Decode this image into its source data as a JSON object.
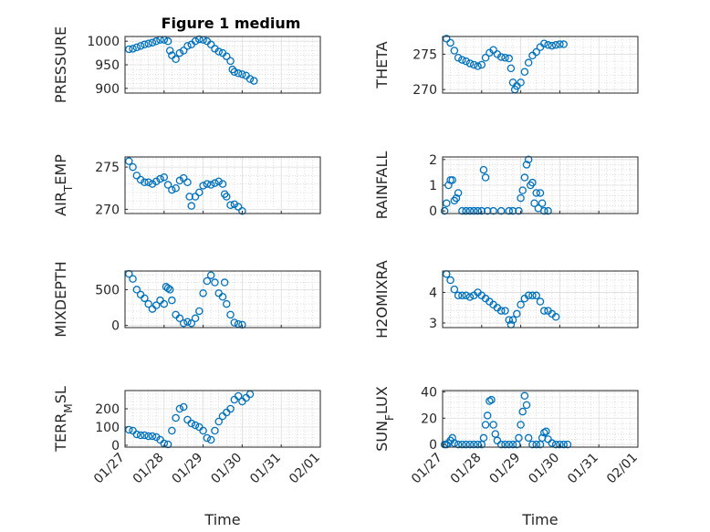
{
  "figure_title": "Figure 1 medium",
  "marker_color": "#0072bd",
  "chart_data": [
    {
      "type": "scatter",
      "ylabel": "PRESSURE",
      "ylim": [
        890,
        1010
      ],
      "yticks": [
        900,
        950,
        1000
      ],
      "xlim": [
        0,
        5
      ],
      "xticks": [
        "01/27",
        "01/28",
        "01/29",
        "01/30",
        "01/31",
        "02/01"
      ],
      "show_xticklabels": false,
      "xlabel": "",
      "grid": true,
      "points": [
        [
          0.1,
          983
        ],
        [
          0.2,
          984
        ],
        [
          0.3,
          987
        ],
        [
          0.4,
          990
        ],
        [
          0.5,
          993
        ],
        [
          0.6,
          995
        ],
        [
          0.7,
          997
        ],
        [
          0.8,
          1000
        ],
        [
          0.9,
          1003
        ],
        [
          1.0,
          1003
        ],
        [
          1.1,
          1000
        ],
        [
          1.15,
          980
        ],
        [
          1.2,
          970
        ],
        [
          1.3,
          962
        ],
        [
          1.4,
          975
        ],
        [
          1.5,
          980
        ],
        [
          1.6,
          990
        ],
        [
          1.7,
          993
        ],
        [
          1.8,
          1000
        ],
        [
          1.9,
          1004
        ],
        [
          2.0,
          1003
        ],
        [
          2.1,
          1000
        ],
        [
          2.2,
          993
        ],
        [
          2.3,
          984
        ],
        [
          2.4,
          978
        ],
        [
          2.5,
          975
        ],
        [
          2.6,
          968
        ],
        [
          2.7,
          958
        ],
        [
          2.75,
          940
        ],
        [
          2.8,
          935
        ],
        [
          2.9,
          932
        ],
        [
          3.0,
          930
        ],
        [
          3.1,
          927
        ],
        [
          3.2,
          920
        ],
        [
          3.3,
          916
        ]
      ]
    },
    {
      "type": "scatter",
      "ylabel": "THETA",
      "ylim": [
        269.5,
        277.5
      ],
      "yticks": [
        270,
        275
      ],
      "xlim": [
        0,
        5
      ],
      "xticks": [
        "01/27",
        "01/28",
        "01/29",
        "01/30",
        "01/31",
        "02/01"
      ],
      "show_xticklabels": false,
      "xlabel": "",
      "grid": true,
      "points": [
        [
          0.1,
          277.2
        ],
        [
          0.2,
          276.6
        ],
        [
          0.3,
          275.5
        ],
        [
          0.4,
          274.5
        ],
        [
          0.5,
          274.2
        ],
        [
          0.6,
          274
        ],
        [
          0.7,
          273.7
        ],
        [
          0.8,
          273.5
        ],
        [
          0.9,
          273.3
        ],
        [
          1.0,
          273.5
        ],
        [
          1.1,
          274.5
        ],
        [
          1.2,
          275.2
        ],
        [
          1.3,
          275.6
        ],
        [
          1.4,
          275
        ],
        [
          1.5,
          274.6
        ],
        [
          1.6,
          274.5
        ],
        [
          1.7,
          274.4
        ],
        [
          1.75,
          273
        ],
        [
          1.8,
          271
        ],
        [
          1.85,
          270
        ],
        [
          1.9,
          270.5
        ],
        [
          2.0,
          271
        ],
        [
          2.1,
          272.5
        ],
        [
          2.2,
          273.8
        ],
        [
          2.3,
          274.8
        ],
        [
          2.4,
          275.3
        ],
        [
          2.5,
          276
        ],
        [
          2.6,
          276.5
        ],
        [
          2.7,
          276.3
        ],
        [
          2.8,
          276.2
        ],
        [
          2.9,
          276.3
        ],
        [
          3.0,
          276.4
        ],
        [
          3.1,
          276.4
        ]
      ]
    },
    {
      "type": "scatter",
      "ylabel": "AIR_TEMP",
      "ylim": [
        269.5,
        276.2
      ],
      "yticks": [
        270,
        275
      ],
      "xlim": [
        0,
        5
      ],
      "xticks": [
        "01/27",
        "01/28",
        "01/29",
        "01/30",
        "01/31",
        "02/01"
      ],
      "show_xticklabels": false,
      "xlabel": "",
      "grid": true,
      "points": [
        [
          0.1,
          275.7
        ],
        [
          0.2,
          275
        ],
        [
          0.3,
          274
        ],
        [
          0.4,
          273.5
        ],
        [
          0.5,
          273.2
        ],
        [
          0.6,
          273.2
        ],
        [
          0.7,
          273
        ],
        [
          0.8,
          273.3
        ],
        [
          0.9,
          273.6
        ],
        [
          1.0,
          273.8
        ],
        [
          1.1,
          272.9
        ],
        [
          1.2,
          272.3
        ],
        [
          1.3,
          272.5
        ],
        [
          1.4,
          273.4
        ],
        [
          1.5,
          273.7
        ],
        [
          1.6,
          273.2
        ],
        [
          1.65,
          271.5
        ],
        [
          1.7,
          270.4
        ],
        [
          1.8,
          271.5
        ],
        [
          1.9,
          272
        ],
        [
          2.0,
          272.8
        ],
        [
          2.1,
          273
        ],
        [
          2.2,
          272.9
        ],
        [
          2.3,
          273.1
        ],
        [
          2.4,
          273.3
        ],
        [
          2.5,
          273
        ],
        [
          2.55,
          271.8
        ],
        [
          2.6,
          271.5
        ],
        [
          2.7,
          270.5
        ],
        [
          2.8,
          270.6
        ],
        [
          2.9,
          270.3
        ],
        [
          3.0,
          269.8
        ]
      ]
    },
    {
      "type": "scatter",
      "ylabel": "RAINFALL",
      "ylim": [
        -0.1,
        2.1
      ],
      "yticks": [
        0,
        1,
        2
      ],
      "xlim": [
        0,
        5
      ],
      "xticks": [
        "01/27",
        "01/28",
        "01/29",
        "01/30",
        "01/31",
        "02/01"
      ],
      "show_xticklabels": false,
      "xlabel": "",
      "grid": true,
      "points": [
        [
          0.05,
          0
        ],
        [
          0.1,
          0.3
        ],
        [
          0.15,
          1
        ],
        [
          0.2,
          1.2
        ],
        [
          0.25,
          1.2
        ],
        [
          0.3,
          0.4
        ],
        [
          0.35,
          0.5
        ],
        [
          0.4,
          0.7
        ],
        [
          0.5,
          0
        ],
        [
          0.6,
          0
        ],
        [
          0.7,
          0
        ],
        [
          0.8,
          0
        ],
        [
          0.9,
          0
        ],
        [
          1.0,
          0
        ],
        [
          1.05,
          1.6
        ],
        [
          1.1,
          1.3
        ],
        [
          1.15,
          0
        ],
        [
          1.3,
          0
        ],
        [
          1.5,
          0
        ],
        [
          1.7,
          0
        ],
        [
          1.8,
          0
        ],
        [
          1.95,
          0
        ],
        [
          2.0,
          0.5
        ],
        [
          2.05,
          0.8
        ],
        [
          2.1,
          1.3
        ],
        [
          2.15,
          1.8
        ],
        [
          2.2,
          2
        ],
        [
          2.25,
          1
        ],
        [
          2.3,
          1.1
        ],
        [
          2.35,
          0.3
        ],
        [
          2.4,
          0.7
        ],
        [
          2.45,
          0.1
        ],
        [
          2.5,
          0.7
        ],
        [
          2.55,
          0.3
        ],
        [
          2.6,
          0
        ],
        [
          2.7,
          0
        ]
      ]
    },
    {
      "type": "scatter",
      "ylabel": "MIXDEPTH",
      "ylim": [
        -30,
        760
      ],
      "yticks": [
        0,
        500
      ],
      "xlim": [
        0,
        5
      ],
      "xticks": [
        "01/27",
        "01/28",
        "01/29",
        "01/30",
        "01/31",
        "02/01"
      ],
      "show_xticklabels": false,
      "xlabel": "",
      "grid": true,
      "points": [
        [
          0.1,
          720
        ],
        [
          0.2,
          650
        ],
        [
          0.3,
          500
        ],
        [
          0.4,
          430
        ],
        [
          0.5,
          380
        ],
        [
          0.6,
          300
        ],
        [
          0.7,
          230
        ],
        [
          0.8,
          280
        ],
        [
          0.9,
          350
        ],
        [
          1.0,
          300
        ],
        [
          1.05,
          540
        ],
        [
          1.1,
          520
        ],
        [
          1.15,
          500
        ],
        [
          1.2,
          350
        ],
        [
          1.3,
          150
        ],
        [
          1.4,
          100
        ],
        [
          1.5,
          30
        ],
        [
          1.6,
          50
        ],
        [
          1.7,
          30
        ],
        [
          1.8,
          100
        ],
        [
          1.9,
          200
        ],
        [
          2.0,
          450
        ],
        [
          2.1,
          620
        ],
        [
          2.2,
          700
        ],
        [
          2.3,
          600
        ],
        [
          2.4,
          450
        ],
        [
          2.5,
          400
        ],
        [
          2.55,
          600
        ],
        [
          2.6,
          300
        ],
        [
          2.7,
          150
        ],
        [
          2.8,
          40
        ],
        [
          2.9,
          20
        ],
        [
          3.0,
          10
        ]
      ]
    },
    {
      "type": "scatter",
      "ylabel": "H2OMIXRA",
      "ylim": [
        2.85,
        4.7
      ],
      "yticks": [
        3,
        4
      ],
      "xlim": [
        0,
        5
      ],
      "xticks": [
        "01/27",
        "01/28",
        "01/29",
        "01/30",
        "01/31",
        "02/01"
      ],
      "show_xticklabels": false,
      "xlabel": "",
      "grid": true,
      "points": [
        [
          0.1,
          4.6
        ],
        [
          0.2,
          4.4
        ],
        [
          0.3,
          4.1
        ],
        [
          0.4,
          3.9
        ],
        [
          0.5,
          3.9
        ],
        [
          0.6,
          3.9
        ],
        [
          0.7,
          3.85
        ],
        [
          0.8,
          3.9
        ],
        [
          0.9,
          4
        ],
        [
          1.0,
          3.9
        ],
        [
          1.1,
          3.8
        ],
        [
          1.2,
          3.7
        ],
        [
          1.3,
          3.6
        ],
        [
          1.4,
          3.5
        ],
        [
          1.5,
          3.4
        ],
        [
          1.6,
          3.4
        ],
        [
          1.7,
          3.1
        ],
        [
          1.75,
          2.95
        ],
        [
          1.8,
          3.1
        ],
        [
          1.9,
          3.3
        ],
        [
          2.0,
          3.6
        ],
        [
          2.1,
          3.8
        ],
        [
          2.2,
          3.9
        ],
        [
          2.3,
          3.9
        ],
        [
          2.4,
          3.9
        ],
        [
          2.5,
          3.7
        ],
        [
          2.6,
          3.4
        ],
        [
          2.7,
          3.4
        ],
        [
          2.8,
          3.3
        ],
        [
          2.9,
          3.2
        ]
      ]
    },
    {
      "type": "scatter",
      "ylabel": "TERR_MSL",
      "ylim": [
        -10,
        300
      ],
      "yticks": [
        0,
        100,
        200
      ],
      "xlim": [
        0,
        5
      ],
      "xticks": [
        "01/27",
        "01/28",
        "01/29",
        "01/30",
        "01/31",
        "02/01"
      ],
      "show_xticklabels": true,
      "xlabel": "Time",
      "grid": true,
      "points": [
        [
          0.1,
          85
        ],
        [
          0.2,
          80
        ],
        [
          0.3,
          60
        ],
        [
          0.4,
          55
        ],
        [
          0.5,
          55
        ],
        [
          0.6,
          50
        ],
        [
          0.7,
          50
        ],
        [
          0.8,
          45
        ],
        [
          0.9,
          30
        ],
        [
          1.0,
          10
        ],
        [
          1.1,
          5
        ],
        [
          1.2,
          80
        ],
        [
          1.3,
          150
        ],
        [
          1.4,
          200
        ],
        [
          1.5,
          210
        ],
        [
          1.6,
          140
        ],
        [
          1.7,
          120
        ],
        [
          1.8,
          110
        ],
        [
          1.9,
          100
        ],
        [
          2.0,
          80
        ],
        [
          2.1,
          40
        ],
        [
          2.2,
          30
        ],
        [
          2.3,
          80
        ],
        [
          2.4,
          130
        ],
        [
          2.5,
          160
        ],
        [
          2.6,
          180
        ],
        [
          2.7,
          200
        ],
        [
          2.8,
          250
        ],
        [
          2.9,
          270
        ],
        [
          3.0,
          240
        ],
        [
          3.1,
          260
        ],
        [
          3.2,
          280
        ]
      ]
    },
    {
      "type": "scatter",
      "ylabel": "SUN_FLUX",
      "ylim": [
        -2,
        41
      ],
      "yticks": [
        0,
        20,
        40
      ],
      "xlim": [
        0,
        5
      ],
      "xticks": [
        "01/27",
        "01/28",
        "01/29",
        "01/30",
        "01/31",
        "02/01"
      ],
      "show_xticklabels": true,
      "xlabel": "Time",
      "grid": true,
      "points": [
        [
          0.05,
          0
        ],
        [
          0.1,
          0
        ],
        [
          0.15,
          1
        ],
        [
          0.2,
          3
        ],
        [
          0.25,
          5
        ],
        [
          0.3,
          1
        ],
        [
          0.4,
          0
        ],
        [
          0.5,
          0
        ],
        [
          0.6,
          0
        ],
        [
          0.7,
          0
        ],
        [
          0.8,
          0
        ],
        [
          0.9,
          0
        ],
        [
          1.0,
          0
        ],
        [
          1.05,
          5
        ],
        [
          1.1,
          15
        ],
        [
          1.15,
          22
        ],
        [
          1.2,
          33
        ],
        [
          1.25,
          34
        ],
        [
          1.3,
          15
        ],
        [
          1.35,
          8
        ],
        [
          1.4,
          3
        ],
        [
          1.5,
          0
        ],
        [
          1.6,
          0
        ],
        [
          1.7,
          0
        ],
        [
          1.8,
          0
        ],
        [
          1.9,
          0
        ],
        [
          1.95,
          5
        ],
        [
          2.0,
          15
        ],
        [
          2.05,
          25
        ],
        [
          2.1,
          37
        ],
        [
          2.15,
          30
        ],
        [
          2.2,
          5
        ],
        [
          2.3,
          0
        ],
        [
          2.4,
          0
        ],
        [
          2.5,
          0
        ],
        [
          2.55,
          5
        ],
        [
          2.6,
          9
        ],
        [
          2.65,
          10
        ],
        [
          2.7,
          4
        ],
        [
          2.8,
          1
        ],
        [
          2.9,
          0
        ],
        [
          3.0,
          0
        ],
        [
          3.1,
          0
        ],
        [
          3.2,
          0
        ]
      ]
    }
  ]
}
